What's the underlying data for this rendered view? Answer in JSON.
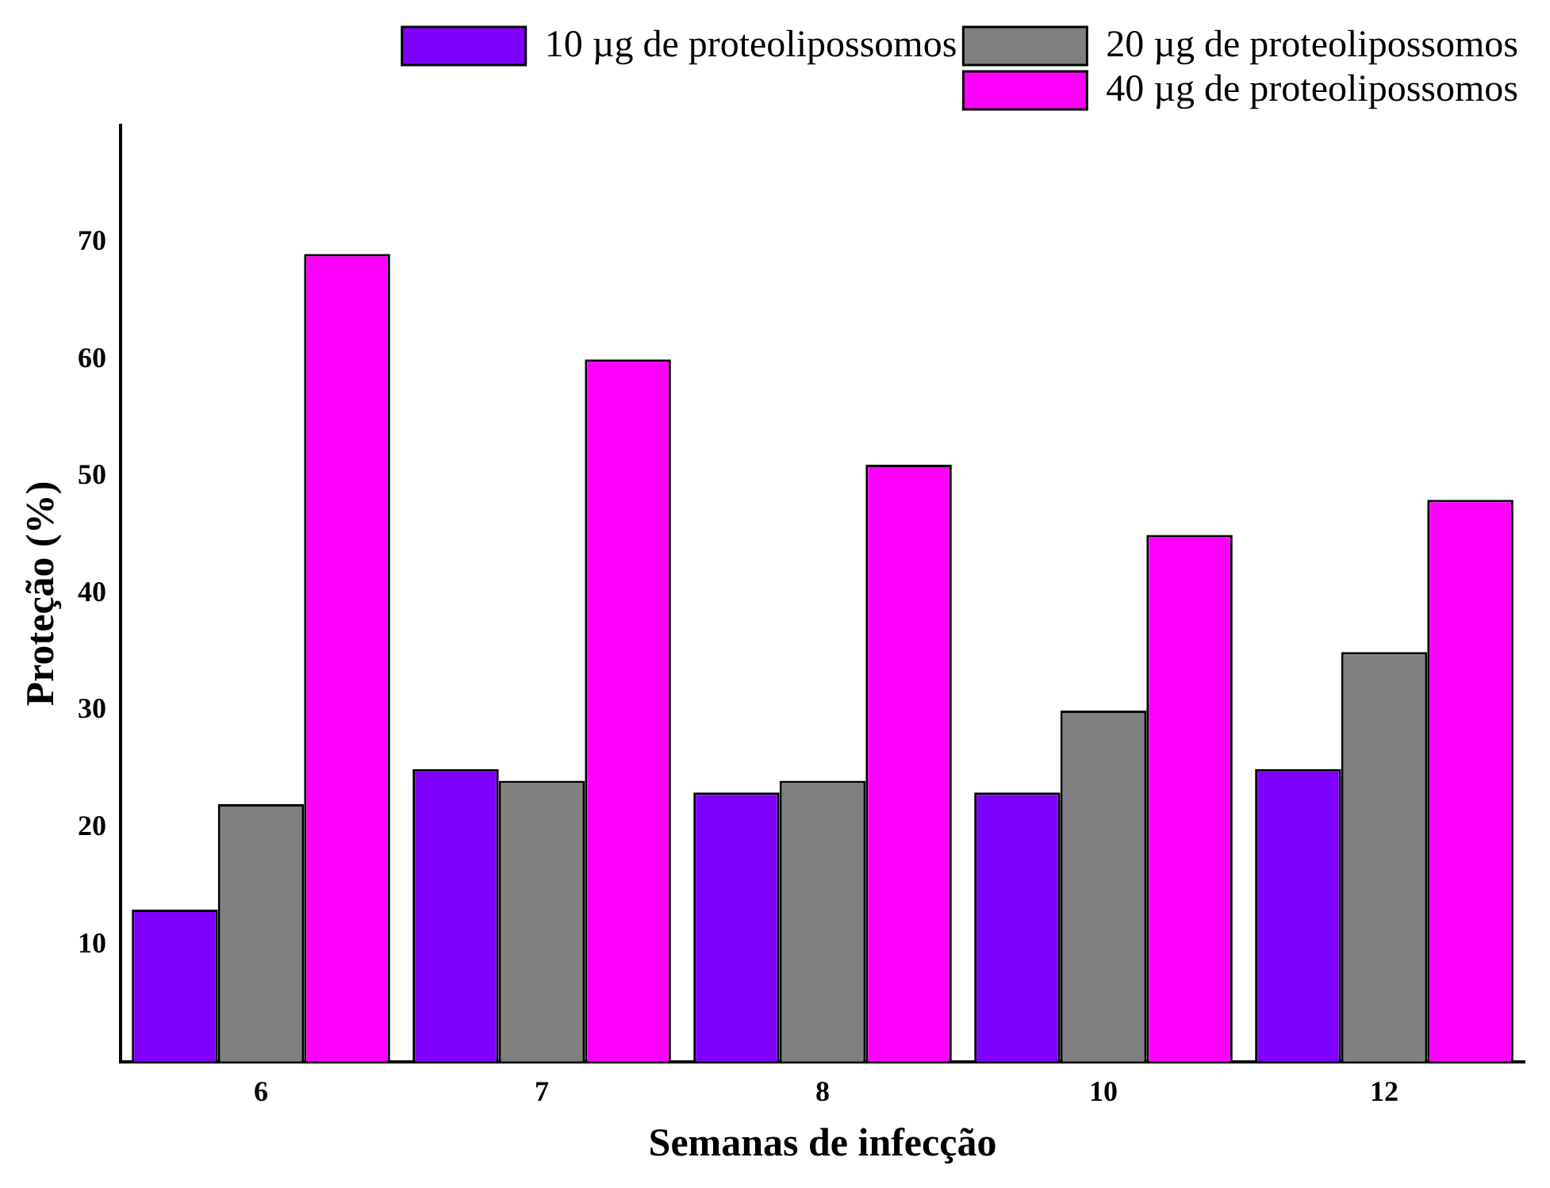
{
  "chart_data": {
    "type": "bar",
    "xlabel": "Semanas de infecção",
    "ylabel": "Proteção (%)",
    "categories": [
      "6",
      "7",
      "8",
      "10",
      "12"
    ],
    "series": [
      {
        "name": "10 µg de proteolipossomos",
        "color": "#8000ff",
        "values": [
          13,
          25,
          23,
          23,
          25
        ]
      },
      {
        "name": "20 µg de proteolipossomos",
        "color": "#808080",
        "values": [
          22,
          24,
          24,
          30,
          35
        ]
      },
      {
        "name": "40 µg de proteolipossomos",
        "color": "#ff00ff",
        "values": [
          69,
          60,
          51,
          45,
          48
        ]
      }
    ],
    "ylim": [
      0,
      80
    ],
    "yticks": [
      10,
      20,
      30,
      40,
      50,
      60,
      70
    ],
    "grid": false,
    "legend": "top right"
  }
}
